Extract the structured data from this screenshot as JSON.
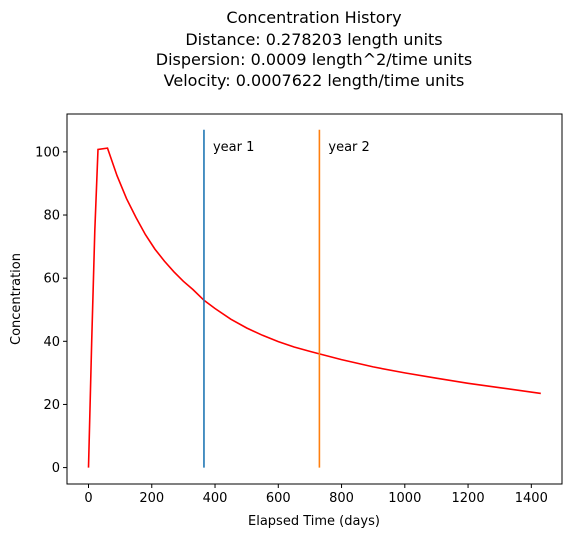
{
  "chart_data": {
    "type": "line",
    "title_lines": [
      "Concentration History",
      "Distance: 0.278203 length units",
      "Dispersion: 0.0009 length^2/time units",
      "Velocity: 0.0007622 length/time units"
    ],
    "xlabel": "Elapsed Time (days)",
    "ylabel": "Concentration",
    "xlim": [
      -68,
      1497
    ],
    "ylim": [
      -5.2,
      112
    ],
    "xticks": [
      0,
      200,
      400,
      600,
      800,
      1000,
      1200,
      1400
    ],
    "yticks": [
      0,
      20,
      40,
      60,
      80,
      100
    ],
    "grid": false,
    "series": [
      {
        "color": "#ff0000",
        "x": [
          0,
          10,
          20,
          30,
          60,
          90,
          120,
          150,
          180,
          210,
          240,
          270,
          300,
          330,
          365,
          400,
          450,
          500,
          550,
          600,
          650,
          700,
          730,
          800,
          900,
          1000,
          1100,
          1200,
          1300,
          1430
        ],
        "y": [
          0,
          40,
          75,
          100.8,
          101.2,
          92.5,
          85.2,
          79.2,
          73.8,
          69.2,
          65.4,
          62.0,
          59.0,
          56.4,
          53.0,
          50.4,
          47.0,
          44.2,
          41.9,
          39.9,
          38.2,
          36.8,
          36.0,
          34.2,
          31.9,
          30.0,
          28.3,
          26.7,
          25.3,
          23.5
        ]
      }
    ],
    "vlines": [
      {
        "x": 365,
        "y0": 0,
        "y1": 107,
        "color": "#1f77b4",
        "label": "year 1"
      },
      {
        "x": 730,
        "y0": 0,
        "y1": 107,
        "color": "#ff7f0e",
        "label": "year 2"
      }
    ]
  }
}
